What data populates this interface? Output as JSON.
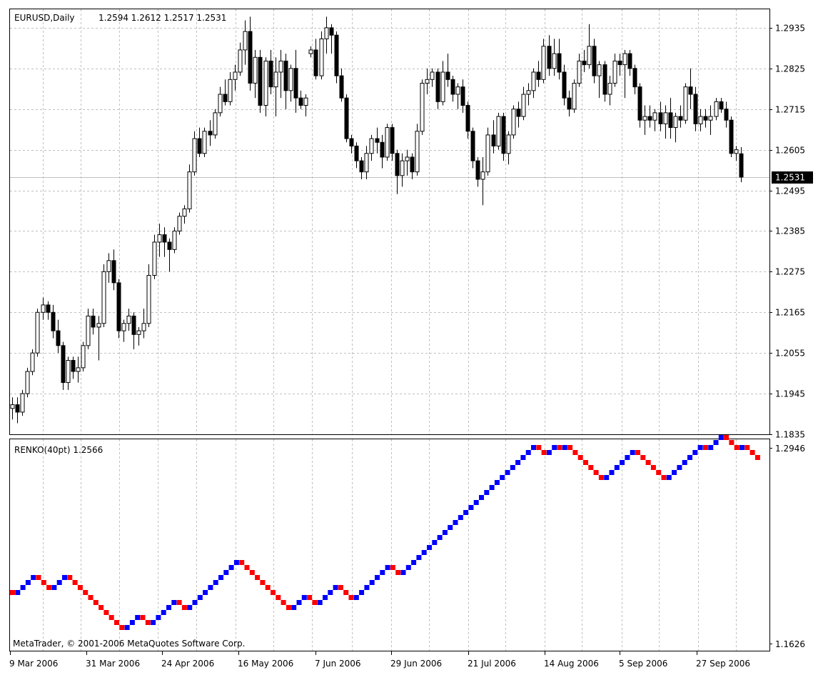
{
  "colors": {
    "background": "#ffffff",
    "grid": "#c0c0c0",
    "candle": "#000000",
    "renko_up": "#0000ff",
    "renko_down": "#ff0000",
    "bid_line": "#c0c0c0",
    "bid_label_bg": "#000000",
    "bid_label_text": "#ffffff"
  },
  "chart_data": [
    {
      "type": "candlestick",
      "title": "EURUSD,Daily",
      "ohlc_header": "1.2594 1.2612 1.2517 1.2531",
      "current_price_label": "1.2531",
      "current_price": 1.2531,
      "ylim": [
        1.1835,
        1.2985
      ],
      "y_ticks": [
        "1.2935",
        "1.2825",
        "1.2715",
        "1.2605",
        "1.2495",
        "1.2385",
        "1.2275",
        "1.2165",
        "1.2055",
        "1.1945",
        "1.1835"
      ],
      "grid": true,
      "candles": [
        [
          1.1905,
          1.1935,
          1.1875,
          1.1915
        ],
        [
          1.1915,
          1.1935,
          1.1865,
          1.1895
        ],
        [
          1.1895,
          1.1955,
          1.1885,
          1.1945
        ],
        [
          1.1945,
          1.2015,
          1.1935,
          1.2005
        ],
        [
          1.2005,
          1.2065,
          1.1995,
          1.2055
        ],
        [
          1.2055,
          1.2175,
          1.2045,
          1.2165
        ],
        [
          1.2165,
          1.2205,
          1.2145,
          1.2185
        ],
        [
          1.2185,
          1.2195,
          1.2145,
          1.2165
        ],
        [
          1.2165,
          1.2185,
          1.2095,
          1.2115
        ],
        [
          1.2115,
          1.2145,
          1.2055,
          1.2075
        ],
        [
          1.2075,
          1.2085,
          1.1955,
          1.1975
        ],
        [
          1.1975,
          1.2045,
          1.1955,
          1.2035
        ],
        [
          1.2035,
          1.2045,
          1.1985,
          1.2005
        ],
        [
          1.2005,
          1.2045,
          1.1975,
          1.2015
        ],
        [
          1.2015,
          1.2085,
          1.2005,
          1.2075
        ],
        [
          1.2075,
          1.2175,
          1.2065,
          1.2155
        ],
        [
          1.2155,
          1.2175,
          1.2105,
          1.2125
        ],
        [
          1.2125,
          1.2155,
          1.2035,
          1.2135
        ],
        [
          1.2135,
          1.2295,
          1.2125,
          1.2275
        ],
        [
          1.2275,
          1.2325,
          1.2245,
          1.2305
        ],
        [
          1.2305,
          1.2335,
          1.2225,
          1.2245
        ],
        [
          1.2245,
          1.2255,
          1.2095,
          1.2115
        ],
        [
          1.2115,
          1.2145,
          1.2085,
          1.2135
        ],
        [
          1.2135,
          1.2175,
          1.2115,
          1.2155
        ],
        [
          1.2155,
          1.2165,
          1.2065,
          1.2105
        ],
        [
          1.2105,
          1.2125,
          1.2075,
          1.2115
        ],
        [
          1.2115,
          1.2175,
          1.2095,
          1.2135
        ],
        [
          1.2135,
          1.2295,
          1.2125,
          1.2265
        ],
        [
          1.2265,
          1.2375,
          1.2255,
          1.2355
        ],
        [
          1.2355,
          1.2405,
          1.2315,
          1.2375
        ],
        [
          1.2375,
          1.2395,
          1.2315,
          1.2355
        ],
        [
          1.2355,
          1.2365,
          1.2275,
          1.2335
        ],
        [
          1.2335,
          1.2395,
          1.2325,
          1.2385
        ],
        [
          1.2385,
          1.2435,
          1.2375,
          1.2425
        ],
        [
          1.2425,
          1.2455,
          1.2405,
          1.2445
        ],
        [
          1.2445,
          1.2565,
          1.2435,
          1.2545
        ],
        [
          1.2545,
          1.2655,
          1.2535,
          1.2635
        ],
        [
          1.2635,
          1.2665,
          1.2585,
          1.2595
        ],
        [
          1.2595,
          1.2665,
          1.2585,
          1.2655
        ],
        [
          1.2655,
          1.2685,
          1.2615,
          1.2645
        ],
        [
          1.2645,
          1.2715,
          1.2635,
          1.2705
        ],
        [
          1.2705,
          1.2775,
          1.2695,
          1.2755
        ],
        [
          1.2755,
          1.2795,
          1.2725,
          1.2735
        ],
        [
          1.2735,
          1.2815,
          1.2725,
          1.2795
        ],
        [
          1.2795,
          1.2835,
          1.2765,
          1.2815
        ],
        [
          1.2815,
          1.2895,
          1.2805,
          1.2875
        ],
        [
          1.2875,
          1.2955,
          1.2835,
          1.2925
        ],
        [
          1.2925,
          1.2965,
          1.2765,
          1.2785
        ],
        [
          1.2785,
          1.2875,
          1.2745,
          1.2855
        ],
        [
          1.2855,
          1.2875,
          1.2705,
          1.2725
        ],
        [
          1.2725,
          1.2855,
          1.2695,
          1.2845
        ],
        [
          1.2845,
          1.2875,
          1.2755,
          1.2775
        ],
        [
          1.2775,
          1.2855,
          1.2695,
          1.2815
        ],
        [
          1.2815,
          1.2875,
          1.2745,
          1.2845
        ],
        [
          1.2845,
          1.2865,
          1.2715,
          1.2765
        ],
        [
          1.2765,
          1.2835,
          1.2735,
          1.2825
        ],
        [
          1.2825,
          1.2875,
          1.2705,
          1.2745
        ],
        [
          1.2745,
          1.2765,
          1.2715,
          1.2725
        ],
        [
          1.2725,
          1.2755,
          1.2695,
          1.2745
        ],
        [
          1.2865,
          1.2885,
          1.2855,
          1.2875
        ],
        [
          1.2875,
          1.2905,
          1.2795,
          1.2805
        ],
        [
          1.2805,
          1.2925,
          1.2795,
          1.2905
        ],
        [
          1.2905,
          1.2965,
          1.2865,
          1.2935
        ],
        [
          1.2935,
          1.2945,
          1.2865,
          1.2915
        ],
        [
          1.2915,
          1.2925,
          1.2785,
          1.2805
        ],
        [
          1.2805,
          1.2825,
          1.2735,
          1.2745
        ],
        [
          1.2745,
          1.2755,
          1.2625,
          1.2635
        ],
        [
          1.2635,
          1.2645,
          1.2595,
          1.2615
        ],
        [
          1.2615,
          1.2625,
          1.2555,
          1.2575
        ],
        [
          1.2575,
          1.2585,
          1.2525,
          1.2545
        ],
        [
          1.2545,
          1.2615,
          1.2525,
          1.2595
        ],
        [
          1.2595,
          1.2645,
          1.2575,
          1.2635
        ],
        [
          1.2635,
          1.2665,
          1.2595,
          1.2625
        ],
        [
          1.2625,
          1.2645,
          1.2555,
          1.2585
        ],
        [
          1.2585,
          1.2675,
          1.2575,
          1.2665
        ],
        [
          1.2665,
          1.2675,
          1.2575,
          1.2595
        ],
        [
          1.2595,
          1.2605,
          1.2485,
          1.2535
        ],
        [
          1.2535,
          1.2595,
          1.2505,
          1.2575
        ],
        [
          1.2575,
          1.2605,
          1.2535,
          1.2585
        ],
        [
          1.2585,
          1.2595,
          1.2525,
          1.2545
        ],
        [
          1.2545,
          1.2675,
          1.2535,
          1.2655
        ],
        [
          1.2655,
          1.2795,
          1.2645,
          1.2785
        ],
        [
          1.2785,
          1.2825,
          1.2755,
          1.2795
        ],
        [
          1.2795,
          1.2825,
          1.2775,
          1.2815
        ],
        [
          1.2815,
          1.2825,
          1.2715,
          1.2735
        ],
        [
          1.2735,
          1.2845,
          1.2725,
          1.2815
        ],
        [
          1.2815,
          1.2865,
          1.2775,
          1.2795
        ],
        [
          1.2795,
          1.2805,
          1.2735,
          1.2755
        ],
        [
          1.2755,
          1.2785,
          1.2715,
          1.2775
        ],
        [
          1.2775,
          1.2795,
          1.2705,
          1.2725
        ],
        [
          1.2725,
          1.2735,
          1.2635,
          1.2655
        ],
        [
          1.2655,
          1.2665,
          1.2555,
          1.2575
        ],
        [
          1.2575,
          1.2585,
          1.2505,
          1.2525
        ],
        [
          1.2525,
          1.2585,
          1.2455,
          1.2545
        ],
        [
          1.2545,
          1.2665,
          1.2535,
          1.2645
        ],
        [
          1.2645,
          1.2685,
          1.2595,
          1.2615
        ],
        [
          1.2615,
          1.2705,
          1.2605,
          1.2695
        ],
        [
          1.2695,
          1.2705,
          1.2575,
          1.2595
        ],
        [
          1.2595,
          1.2655,
          1.2565,
          1.2645
        ],
        [
          1.2645,
          1.2725,
          1.2635,
          1.2715
        ],
        [
          1.2715,
          1.2735,
          1.2665,
          1.2695
        ],
        [
          1.2695,
          1.2775,
          1.2685,
          1.2755
        ],
        [
          1.2755,
          1.2785,
          1.2725,
          1.2765
        ],
        [
          1.2765,
          1.2825,
          1.2745,
          1.2815
        ],
        [
          1.2815,
          1.2845,
          1.2775,
          1.2795
        ],
        [
          1.2795,
          1.2905,
          1.2785,
          1.2885
        ],
        [
          1.2885,
          1.2915,
          1.2805,
          1.2825
        ],
        [
          1.2825,
          1.2905,
          1.2805,
          1.2865
        ],
        [
          1.2865,
          1.2905,
          1.2795,
          1.2815
        ],
        [
          1.2815,
          1.2835,
          1.2725,
          1.2745
        ],
        [
          1.2745,
          1.2765,
          1.2695,
          1.2715
        ],
        [
          1.2715,
          1.2795,
          1.2705,
          1.2785
        ],
        [
          1.2785,
          1.2865,
          1.2775,
          1.2845
        ],
        [
          1.2845,
          1.2875,
          1.2815,
          1.2835
        ],
        [
          1.2835,
          1.2945,
          1.2825,
          1.2885
        ],
        [
          1.2885,
          1.2905,
          1.2785,
          1.2805
        ],
        [
          1.2805,
          1.2845,
          1.2745,
          1.2835
        ],
        [
          1.2835,
          1.2845,
          1.2735,
          1.2755
        ],
        [
          1.2755,
          1.2805,
          1.2725,
          1.2785
        ],
        [
          1.2785,
          1.2865,
          1.2775,
          1.2845
        ],
        [
          1.2845,
          1.2865,
          1.2805,
          1.2835
        ],
        [
          1.2835,
          1.2875,
          1.2745,
          1.2865
        ],
        [
          1.2865,
          1.2875,
          1.2805,
          1.2825
        ],
        [
          1.2825,
          1.2835,
          1.2755,
          1.2775
        ],
        [
          1.2775,
          1.2785,
          1.2665,
          1.2685
        ],
        [
          1.2685,
          1.2725,
          1.2645,
          1.2695
        ],
        [
          1.2695,
          1.2725,
          1.2665,
          1.2685
        ],
        [
          1.2685,
          1.2715,
          1.2655,
          1.2705
        ],
        [
          1.2705,
          1.2735,
          1.2655,
          1.2675
        ],
        [
          1.2675,
          1.2725,
          1.2635,
          1.2705
        ],
        [
          1.2705,
          1.2745,
          1.2635,
          1.2665
        ],
        [
          1.2665,
          1.2705,
          1.2625,
          1.2695
        ],
        [
          1.2695,
          1.2725,
          1.2665,
          1.2685
        ],
        [
          1.2685,
          1.2785,
          1.2675,
          1.2775
        ],
        [
          1.2775,
          1.2825,
          1.2715,
          1.2755
        ],
        [
          1.2755,
          1.2775,
          1.2655,
          1.2675
        ],
        [
          1.2675,
          1.2715,
          1.2655,
          1.2695
        ],
        [
          1.2695,
          1.2715,
          1.2665,
          1.2685
        ],
        [
          1.2685,
          1.2725,
          1.2645,
          1.2695
        ],
        [
          1.2695,
          1.2745,
          1.2685,
          1.2735
        ],
        [
          1.2735,
          1.2745,
          1.2705,
          1.2715
        ],
        [
          1.2715,
          1.2735,
          1.2665,
          1.2685
        ],
        [
          1.2685,
          1.2695,
          1.2585,
          1.2595
        ],
        [
          1.2595,
          1.2615,
          1.2575,
          1.2605
        ],
        [
          1.2594,
          1.2612,
          1.2517,
          1.2531
        ]
      ]
    },
    {
      "type": "renko",
      "title": "RENKO(40pt) 1.2566",
      "ylim": [
        1.1626,
        1.2946
      ],
      "y_ticks": [
        "1.2946",
        "1.1626"
      ],
      "bricks": [
        -1,
        1,
        1,
        1,
        1,
        -1,
        -1,
        -1,
        1,
        1,
        1,
        -1,
        -1,
        -1,
        -1,
        -1,
        -1,
        -1,
        -1,
        -1,
        -1,
        -1,
        1,
        1,
        1,
        -1,
        -1,
        1,
        1,
        1,
        1,
        1,
        -1,
        -1,
        1,
        1,
        1,
        1,
        1,
        1,
        1,
        1,
        1,
        1,
        -1,
        -1,
        -1,
        -1,
        -1,
        -1,
        -1,
        -1,
        -1,
        -1,
        1,
        1,
        1,
        -1,
        -1,
        1,
        1,
        1,
        1,
        -1,
        -1,
        -1,
        1,
        1,
        1,
        1,
        1,
        1,
        1,
        -1,
        -1,
        1,
        1,
        1,
        1,
        1,
        1,
        1,
        1,
        1,
        1,
        1,
        1,
        1,
        1,
        1,
        1,
        1,
        1,
        1,
        1,
        1,
        1,
        1,
        1,
        1,
        1,
        -1,
        -1,
        1,
        1,
        -1,
        1,
        -1,
        -1,
        -1,
        -1,
        -1,
        -1,
        -1,
        1,
        1,
        1,
        1,
        1,
        1,
        -1,
        -1,
        -1,
        -1,
        -1,
        -1,
        1,
        1,
        1,
        1,
        1,
        1,
        1,
        -1,
        1,
        1,
        1,
        -1,
        -1,
        -1,
        1,
        -1,
        -1,
        -1
      ]
    }
  ],
  "x_axis_labels": [
    "9 Mar 2006",
    "31 Mar 2006",
    "24 Apr 2006",
    "16 May 2006",
    "7 Jun 2006",
    "29 Jun 2006",
    "21 Jul 2006",
    "14 Aug 2006",
    "5 Sep 2006",
    "27 Sep 2006"
  ],
  "copyright": "MetaTrader, © 2001-2006 MetaQuotes Software Corp."
}
